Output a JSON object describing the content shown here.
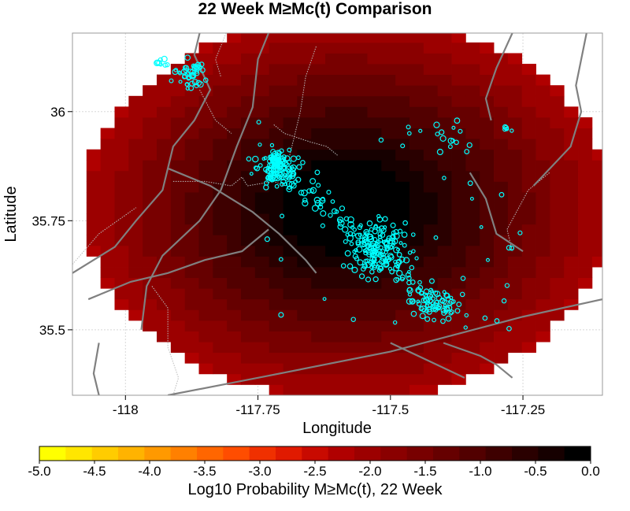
{
  "chart_data": {
    "type": "heatmap",
    "title": "22 Week M≥Mc(t) Comparison",
    "xlabel": "Longitude",
    "ylabel": "Latitude",
    "xlim": [
      -118.1,
      -117.1
    ],
    "ylim": [
      35.35,
      36.18
    ],
    "xticks": [
      {
        "value": -118,
        "label": "-118"
      },
      {
        "value": -117.75,
        "label": "-117.75"
      },
      {
        "value": -117.5,
        "label": "-117.5"
      },
      {
        "value": -117.25,
        "label": "-117.25"
      }
    ],
    "yticks": [
      {
        "value": 36,
        "label": "36"
      },
      {
        "value": 35.75,
        "label": "35.75"
      },
      {
        "value": 35.5,
        "label": "35.5"
      }
    ],
    "grid": true,
    "field": {
      "description_units": "log10 probability",
      "center": [
        -117.58,
        35.78
      ],
      "radius_deg": [
        0.5,
        0.44
      ],
      "peak_value": 0.0,
      "edge_value": -2.2,
      "cell_deg": [
        0.0265,
        0.0245
      ]
    },
    "colorbar": {
      "label": "Log10 Probability M≥Mc(t), 22 Week",
      "min": -5.0,
      "max": 0.0,
      "tick_labels": [
        "-5.0",
        "-4.5",
        "-4.0",
        "-3.5",
        "-3.0",
        "-2.5",
        "-2.0",
        "-1.5",
        "-1.0",
        "-0.5",
        "0.0"
      ],
      "colors": [
        "#ffff00",
        "#ffe600",
        "#ffcc00",
        "#ffb300",
        "#ff9900",
        "#ff8000",
        "#ff6600",
        "#ff4d00",
        "#f03000",
        "#e01a00",
        "#c80a00",
        "#b00000",
        "#9c0000",
        "#8a0000",
        "#780000",
        "#660000",
        "#520000",
        "#3e0000",
        "#2a0000",
        "#160000",
        "#000000"
      ]
    },
    "events_color": "#00ffff",
    "events": {
      "clusters": [
        {
          "lon": -117.88,
          "lat": 36.09,
          "n": 45,
          "spread": [
            0.025,
            0.03
          ]
        },
        {
          "lon": -117.93,
          "lat": 36.11,
          "n": 8,
          "spread": [
            0.012,
            0.008
          ]
        },
        {
          "lon": -117.71,
          "lat": 35.87,
          "n": 110,
          "spread": [
            0.03,
            0.035
          ]
        },
        {
          "lon": -117.52,
          "lat": 35.68,
          "n": 140,
          "spread": [
            0.05,
            0.05
          ]
        },
        {
          "lon": -117.42,
          "lat": 35.56,
          "n": 50,
          "spread": [
            0.04,
            0.03
          ]
        },
        {
          "lon": -117.38,
          "lat": 35.94,
          "n": 14,
          "spread": [
            0.03,
            0.03
          ]
        },
        {
          "lon": -117.28,
          "lat": 35.96,
          "n": 5,
          "spread": [
            0.008,
            0.006
          ]
        }
      ],
      "trend": {
        "from": [
          -117.74,
          35.9
        ],
        "to": [
          -117.38,
          35.53
        ],
        "n": 120,
        "width": 0.025
      }
    },
    "faults": [
      [
        [
          -118.1,
          35.63
        ],
        [
          -118.02,
          35.69
        ],
        [
          -117.98,
          35.75
        ],
        [
          -117.93,
          35.82
        ],
        [
          -117.91,
          35.92
        ],
        [
          -117.87,
          35.98
        ],
        [
          -117.84,
          36.05
        ],
        [
          -117.87,
          36.13
        ],
        [
          -117.86,
          36.18
        ]
      ],
      [
        [
          -117.97,
          35.5
        ],
        [
          -117.96,
          35.6
        ],
        [
          -117.93,
          35.67
        ],
        [
          -117.86,
          35.75
        ],
        [
          -117.82,
          35.82
        ],
        [
          -117.79,
          35.92
        ],
        [
          -117.76,
          36.01
        ],
        [
          -117.75,
          36.12
        ],
        [
          -117.73,
          36.18
        ]
      ],
      [
        [
          -118.07,
          35.57
        ],
        [
          -117.99,
          35.61
        ],
        [
          -117.92,
          35.63
        ],
        [
          -117.85,
          35.66
        ],
        [
          -117.78,
          35.68
        ],
        [
          -117.73,
          35.73
        ]
      ],
      [
        [
          -117.92,
          35.87
        ],
        [
          -117.84,
          35.83
        ],
        [
          -117.76,
          35.77
        ],
        [
          -117.71,
          35.72
        ],
        [
          -117.66,
          35.66
        ],
        [
          -117.64,
          35.63
        ]
      ],
      [
        [
          -118.05,
          35.47
        ],
        [
          -118.06,
          35.4
        ],
        [
          -118.05,
          35.35
        ]
      ],
      [
        [
          -117.92,
          35.35
        ],
        [
          -117.75,
          35.39
        ],
        [
          -117.5,
          35.45
        ],
        [
          -117.25,
          35.53
        ],
        [
          -117.1,
          35.57
        ]
      ],
      [
        [
          -117.23,
          35.83
        ],
        [
          -117.16,
          35.92
        ],
        [
          -117.14,
          36.0
        ],
        [
          -117.15,
          36.06
        ],
        [
          -117.13,
          36.18
        ]
      ],
      [
        [
          -117.31,
          35.98
        ],
        [
          -117.32,
          36.03
        ],
        [
          -117.3,
          36.1
        ],
        [
          -117.27,
          36.18
        ]
      ],
      [
        [
          -117.25,
          35.68
        ],
        [
          -117.3,
          35.72
        ],
        [
          -117.32,
          35.8
        ],
        [
          -117.35,
          35.86
        ]
      ],
      [
        [
          -117.5,
          35.47
        ],
        [
          -117.43,
          35.43
        ],
        [
          -117.36,
          35.39
        ]
      ],
      [
        [
          -117.4,
          35.47
        ],
        [
          -117.33,
          35.44
        ],
        [
          -117.3,
          35.42
        ],
        [
          -117.27,
          35.39
        ]
      ]
    ],
    "boundaries": [
      [
        [
          -118.1,
          35.65
        ],
        [
          -118.05,
          35.72
        ],
        [
          -117.98,
          35.78
        ]
      ],
      [
        [
          -117.91,
          35.84
        ],
        [
          -117.85,
          35.84
        ],
        [
          -117.8,
          35.83
        ],
        [
          -117.78,
          35.85
        ],
        [
          -117.77,
          35.83
        ],
        [
          -117.72,
          35.84
        ],
        [
          -117.7,
          35.83
        ]
      ],
      [
        [
          -117.86,
          36.05
        ],
        [
          -117.83,
          35.98
        ],
        [
          -117.8,
          35.95
        ]
      ],
      [
        [
          -117.95,
          35.6
        ],
        [
          -117.92,
          35.55
        ],
        [
          -117.92,
          35.46
        ],
        [
          -117.9,
          35.39
        ],
        [
          -117.91,
          35.35
        ]
      ],
      [
        [
          -117.81,
          36.18
        ],
        [
          -117.83,
          36.12
        ],
        [
          -117.82,
          36.08
        ]
      ],
      [
        [
          -117.72,
          35.97
        ],
        [
          -117.7,
          35.95
        ],
        [
          -117.65,
          35.93
        ],
        [
          -117.62,
          35.92
        ],
        [
          -117.6,
          35.9
        ]
      ],
      [
        [
          -117.2,
          35.86
        ],
        [
          -117.24,
          35.82
        ],
        [
          -117.28,
          35.73
        ],
        [
          -117.27,
          35.68
        ]
      ],
      [
        [
          -117.69,
          35.9
        ],
        [
          -117.67,
          36.0
        ],
        [
          -117.66,
          36.08
        ],
        [
          -117.64,
          36.15
        ]
      ]
    ]
  }
}
